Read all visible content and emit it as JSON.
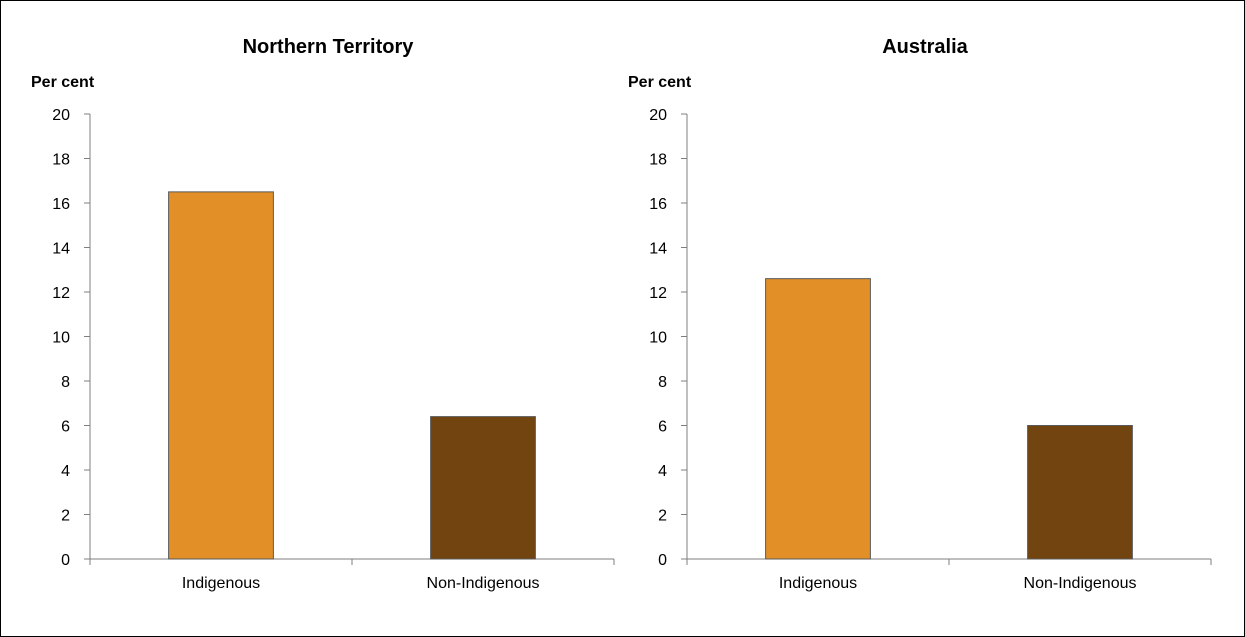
{
  "chart_data": [
    {
      "type": "bar",
      "title": "Northern Territory",
      "ylabel": "Per cent",
      "xlabel": "",
      "categories": [
        "Indigenous",
        "Non-Indigenous"
      ],
      "values": [
        16.5,
        6.4
      ],
      "ylim": [
        0,
        20
      ],
      "yticks": [
        "0",
        "2",
        "4",
        "6",
        "8",
        "10",
        "12",
        "14",
        "16",
        "18",
        "20"
      ],
      "colors": [
        "#E28F27",
        "#72440F"
      ],
      "grid": false,
      "legend": "none"
    },
    {
      "type": "bar",
      "title": "Australia",
      "ylabel": "Per cent",
      "xlabel": "",
      "categories": [
        "Indigenous",
        "Non-Indigenous"
      ],
      "values": [
        12.6,
        6.0
      ],
      "ylim": [
        0,
        20
      ],
      "yticks": [
        "0",
        "2",
        "4",
        "6",
        "8",
        "10",
        "12",
        "14",
        "16",
        "18",
        "20"
      ],
      "colors": [
        "#E28F27",
        "#72440F"
      ],
      "grid": false,
      "legend": "none"
    }
  ],
  "colors": {
    "axis": "#7f7f7f",
    "bar_border": "#595959",
    "frame_border": "#000000"
  }
}
